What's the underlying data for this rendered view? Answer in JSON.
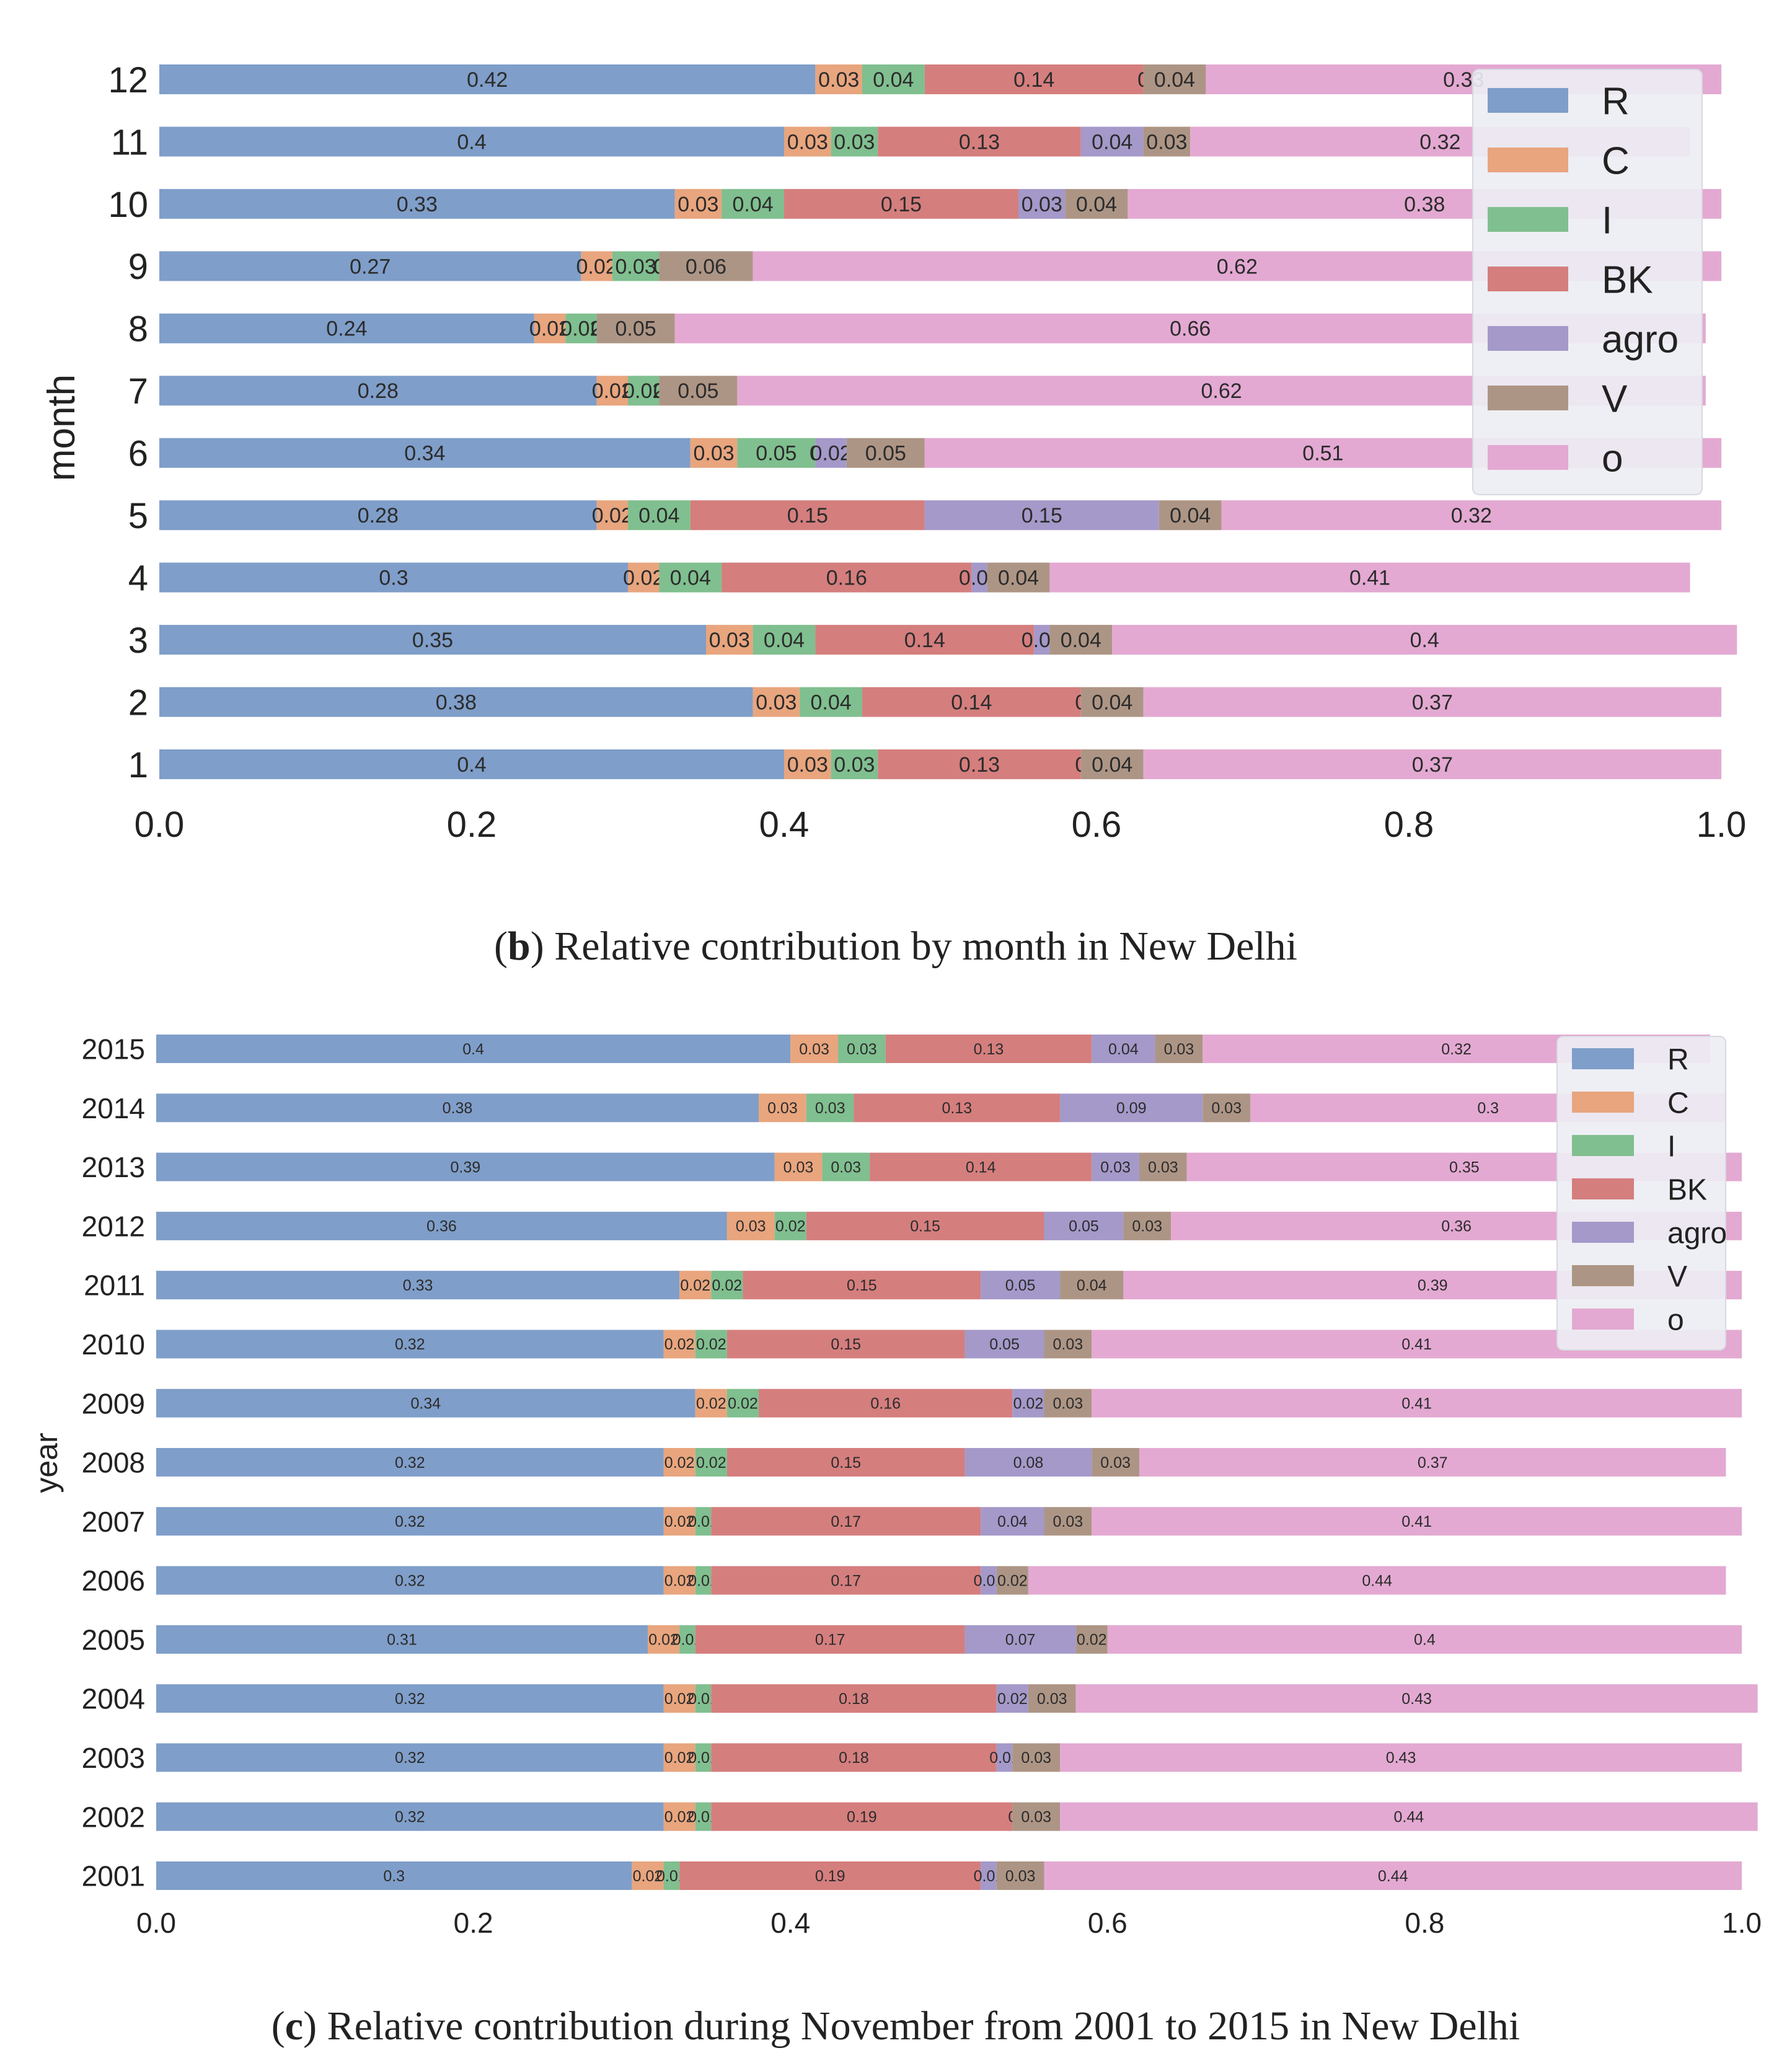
{
  "colors": {
    "R": "#7f9ec9",
    "C": "#e8a57e",
    "I": "#80bf8f",
    "BK": "#d57e7e",
    "agro": "#a499c9",
    "V": "#ad9585",
    "o": "#e3a9d2"
  },
  "chart_data": [
    {
      "type": "bar",
      "orientation": "horizontal",
      "stacked": true,
      "panel": "b",
      "ylabel": "month",
      "xlabel": "",
      "xlim": [
        0.0,
        1.0
      ],
      "xticks": [
        "0.0",
        "0.2",
        "0.4",
        "0.6",
        "0.8",
        "1.0"
      ],
      "legend": {
        "placement": "top-right",
        "entries": [
          "R",
          "C",
          "I",
          "BK",
          "agro",
          "V",
          "o"
        ]
      },
      "caption_bold": "b",
      "caption_text": "Relative contribution by month in New Delhi",
      "categories": [
        "1",
        "2",
        "3",
        "4",
        "5",
        "6",
        "7",
        "8",
        "9",
        "10",
        "11",
        "12"
      ],
      "series": [
        {
          "name": "R",
          "values": [
            0.4,
            0.38,
            0.35,
            0.3,
            0.28,
            0.34,
            0.28,
            0.24,
            0.27,
            0.33,
            0.4,
            0.42
          ]
        },
        {
          "name": "C",
          "values": [
            0.03,
            0.03,
            0.03,
            0.02,
            0.02,
            0.03,
            0.02,
            0.02,
            0.02,
            0.03,
            0.03,
            0.03
          ]
        },
        {
          "name": "I",
          "values": [
            0.03,
            0.04,
            0.04,
            0.04,
            0.04,
            0.05,
            0.02,
            0.02,
            0.03,
            0.04,
            0.03,
            0.04
          ]
        },
        {
          "name": "BK",
          "values": [
            0.13,
            0.14,
            0.14,
            0.16,
            0.15,
            0.0,
            0.0,
            0.0,
            0.0,
            0.15,
            0.13,
            0.14
          ]
        },
        {
          "name": "agro",
          "values": [
            0.0,
            0.0,
            0.01,
            0.01,
            0.15,
            0.02,
            0.0,
            0.0,
            0.0,
            0.03,
            0.04,
            0.0
          ]
        },
        {
          "name": "V",
          "values": [
            0.04,
            0.04,
            0.04,
            0.04,
            0.04,
            0.05,
            0.05,
            0.05,
            0.06,
            0.04,
            0.03,
            0.04
          ]
        },
        {
          "name": "o",
          "values": [
            0.37,
            0.37,
            0.4,
            0.41,
            0.32,
            0.51,
            0.62,
            0.66,
            0.62,
            0.38,
            0.32,
            0.33
          ]
        }
      ]
    },
    {
      "type": "bar",
      "orientation": "horizontal",
      "stacked": true,
      "panel": "c",
      "ylabel": "year",
      "xlabel": "",
      "xlim": [
        0.0,
        1.0
      ],
      "xticks": [
        "0.0",
        "0.2",
        "0.4",
        "0.6",
        "0.8",
        "1.0"
      ],
      "legend": {
        "placement": "top-right",
        "entries": [
          "R",
          "C",
          "I",
          "BK",
          "agro",
          "V",
          "o"
        ]
      },
      "caption_bold": "c",
      "caption_text": "Relative contribution during November from 2001 to 2015 in New Delhi",
      "categories": [
        "2001",
        "2002",
        "2003",
        "2004",
        "2005",
        "2006",
        "2007",
        "2008",
        "2009",
        "2010",
        "2011",
        "2012",
        "2013",
        "2014",
        "2015"
      ],
      "series": [
        {
          "name": "R",
          "values": [
            0.3,
            0.32,
            0.32,
            0.32,
            0.31,
            0.32,
            0.32,
            0.32,
            0.34,
            0.32,
            0.33,
            0.36,
            0.39,
            0.38,
            0.4
          ]
        },
        {
          "name": "C",
          "values": [
            0.02,
            0.02,
            0.02,
            0.02,
            0.02,
            0.02,
            0.02,
            0.02,
            0.02,
            0.02,
            0.02,
            0.03,
            0.03,
            0.03,
            0.03
          ]
        },
        {
          "name": "I",
          "values": [
            0.01,
            0.01,
            0.01,
            0.01,
            0.01,
            0.01,
            0.01,
            0.02,
            0.02,
            0.02,
            0.02,
            0.02,
            0.03,
            0.03,
            0.03
          ]
        },
        {
          "name": "BK",
          "values": [
            0.19,
            0.19,
            0.18,
            0.18,
            0.17,
            0.17,
            0.17,
            0.15,
            0.16,
            0.15,
            0.15,
            0.15,
            0.14,
            0.13,
            0.13
          ]
        },
        {
          "name": "agro",
          "values": [
            0.01,
            0.0,
            0.01,
            0.02,
            0.07,
            0.01,
            0.04,
            0.08,
            0.02,
            0.05,
            0.05,
            0.05,
            0.03,
            0.09,
            0.04
          ]
        },
        {
          "name": "V",
          "values": [
            0.03,
            0.03,
            0.03,
            0.03,
            0.02,
            0.02,
            0.03,
            0.03,
            0.03,
            0.03,
            0.04,
            0.03,
            0.03,
            0.03,
            0.03
          ]
        },
        {
          "name": "o",
          "values": [
            0.44,
            0.44,
            0.43,
            0.43,
            0.4,
            0.44,
            0.41,
            0.37,
            0.41,
            0.41,
            0.39,
            0.36,
            0.35,
            0.3,
            0.32
          ]
        }
      ]
    }
  ]
}
